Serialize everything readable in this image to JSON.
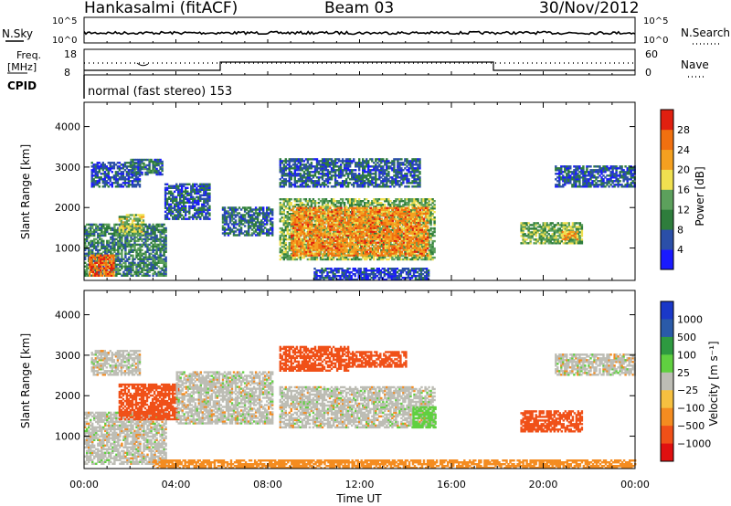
{
  "header": {
    "station": "Hankasalmi (fitACF)",
    "beam": "Beam 03",
    "date": "30/Nov/2012"
  },
  "top_panels": {
    "nsky_label": "N.Sky",
    "nsearch_label": "N.Search",
    "freq_label_line1": "Freq.",
    "freq_label_line2": "[MHz]",
    "nave_label": "Nave",
    "cpid_label": "CPID",
    "mode_text": "normal (fast stereo) 153",
    "noise_ticks_left": [
      "10^5",
      "10^0"
    ],
    "noise_ticks_right": [
      "10^5",
      "10^0"
    ],
    "freq_ticks": [
      "18",
      "8"
    ],
    "nave_ticks": [
      "60",
      "0"
    ]
  },
  "colors": {
    "power_scale": [
      "#1a1aff",
      "#2b4fa8",
      "#2e7d3c",
      "#5ca05c",
      "#f0e050",
      "#f4a020",
      "#f07010",
      "#e02010"
    ],
    "velocity_scale": [
      "#e01010",
      "#f05018",
      "#f48c20",
      "#f6c040",
      "#bdbdb5",
      "#60d040",
      "#2e9a40",
      "#2a5aa8",
      "#1a38c8"
    ],
    "ground_scatter": "#bdbdb5"
  },
  "chart_data": [
    {
      "type": "heatmap",
      "title": "Power",
      "ylabel": "Slant Range [km]",
      "ylim": [
        200,
        4600
      ],
      "xlim": [
        0,
        24
      ],
      "xticks": [
        "00:00",
        "04:00",
        "08:00",
        "12:00",
        "16:00",
        "20:00",
        "00:00"
      ],
      "yticks": [
        "1000",
        "2000",
        "3000",
        "4000"
      ],
      "colorbar_label": "Power [dB]",
      "colorbar_ticks": [
        "4",
        "8",
        "12",
        "16",
        "20",
        "24",
        "28"
      ],
      "regions": [
        {
          "t0": 0.0,
          "t1": 3.6,
          "r0": 300,
          "r1": 1600,
          "v": 10
        },
        {
          "t0": 0.2,
          "t1": 1.3,
          "r0": 300,
          "r1": 800,
          "v": 26
        },
        {
          "t0": 1.5,
          "t1": 2.6,
          "r0": 1300,
          "r1": 1800,
          "v": 16
        },
        {
          "t0": 0.3,
          "t1": 2.4,
          "r0": 2500,
          "r1": 3100,
          "v": 6
        },
        {
          "t0": 2.0,
          "t1": 3.4,
          "r0": 2800,
          "r1": 3200,
          "v": 8
        },
        {
          "t0": 3.5,
          "t1": 5.5,
          "r0": 1700,
          "r1": 2600,
          "v": 7
        },
        {
          "t0": 6.0,
          "t1": 8.2,
          "r0": 1300,
          "r1": 2000,
          "v": 8
        },
        {
          "t0": 8.5,
          "t1": 15.3,
          "r0": 700,
          "r1": 2200,
          "v": 14
        },
        {
          "t0": 9.0,
          "t1": 15.0,
          "r0": 800,
          "r1": 2000,
          "v": 24
        },
        {
          "t0": 8.5,
          "t1": 14.6,
          "r0": 2500,
          "r1": 3200,
          "v": 7
        },
        {
          "t0": 10.0,
          "t1": 15.0,
          "r0": 200,
          "r1": 500,
          "v": 5
        },
        {
          "t0": 19.0,
          "t1": 21.7,
          "r0": 1100,
          "r1": 1600,
          "v": 14
        },
        {
          "t0": 20.8,
          "t1": 21.5,
          "r0": 1200,
          "r1": 1400,
          "v": 22
        },
        {
          "t0": 20.5,
          "t1": 24.0,
          "r0": 2500,
          "r1": 3000,
          "v": 6
        }
      ]
    },
    {
      "type": "heatmap",
      "title": "Velocity",
      "ylabel": "Slant Range [km]",
      "xlabel": "Time UT",
      "ylim": [
        200,
        4600
      ],
      "xlim": [
        0,
        24
      ],
      "xticks": [
        "00:00",
        "04:00",
        "08:00",
        "12:00",
        "16:00",
        "20:00",
        "00:00"
      ],
      "yticks": [
        "1000",
        "2000",
        "3000",
        "4000"
      ],
      "colorbar_label": "Velocity [m s⁻¹]",
      "colorbar_ticks": [
        "1000",
        "500",
        "100",
        "25",
        "−25",
        "−100",
        "−500",
        "−1000"
      ],
      "regions": [
        {
          "t0": 0.0,
          "t1": 3.6,
          "r0": 300,
          "r1": 1600,
          "v": 0
        },
        {
          "t0": 1.5,
          "t1": 4.1,
          "r0": 1400,
          "r1": 2300,
          "v": -150
        },
        {
          "t0": 0.3,
          "t1": 2.4,
          "r0": 2500,
          "r1": 3100,
          "v": 0
        },
        {
          "t0": 4.0,
          "t1": 8.2,
          "r0": 1300,
          "r1": 2600,
          "v": 0
        },
        {
          "t0": 8.5,
          "t1": 15.3,
          "r0": 1200,
          "r1": 2200,
          "v": 0
        },
        {
          "t0": 8.5,
          "t1": 11.5,
          "r0": 2600,
          "r1": 3200,
          "v": -200
        },
        {
          "t0": 11.5,
          "t1": 14.0,
          "r0": 2700,
          "r1": 3100,
          "v": -150
        },
        {
          "t0": 14.3,
          "t1": 15.3,
          "r0": 1200,
          "r1": 1700,
          "v": 60
        },
        {
          "t0": 19.0,
          "t1": 21.7,
          "r0": 1100,
          "r1": 1600,
          "v": -300
        },
        {
          "t0": 20.5,
          "t1": 24.0,
          "r0": 2500,
          "r1": 3000,
          "v": 0
        },
        {
          "t0": 3.0,
          "t1": 24.0,
          "r0": 200,
          "r1": 400,
          "v": -60
        }
      ]
    }
  ]
}
